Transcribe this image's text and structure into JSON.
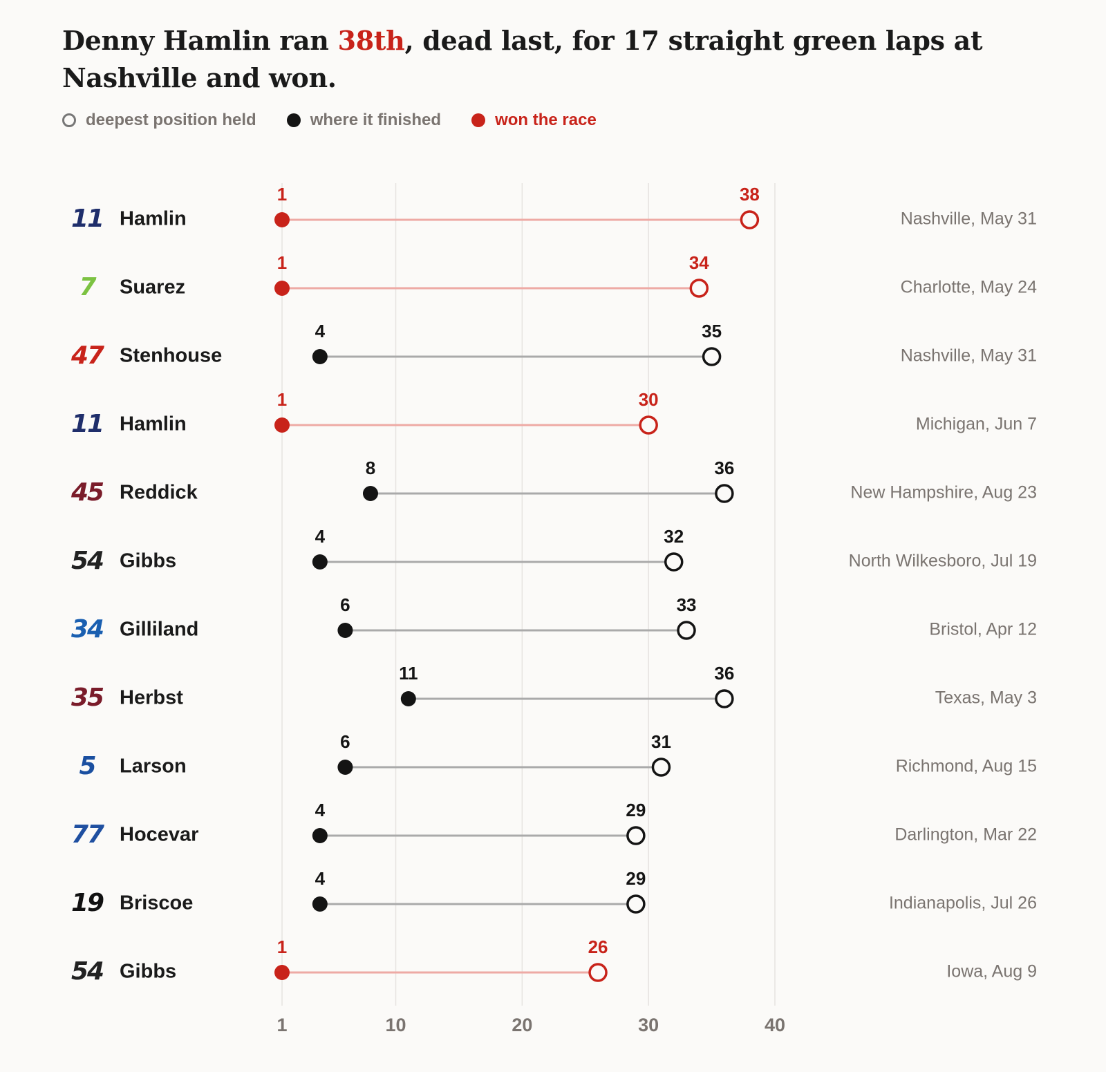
{
  "title": {
    "before": "Denny Hamlin ran ",
    "highlight": "38th",
    "after": ", dead last, for 17 straight green laps at Nashville and won."
  },
  "legend": {
    "open_label": "deepest position held",
    "finish_label": "where it finished",
    "won_label": "won the race"
  },
  "colors": {
    "won": "#c8231a",
    "won_line": "#eeaaa5",
    "finish": "#141414",
    "line": "#aaaaaa",
    "grid": "#e6e3e0",
    "muted": "#7a7470",
    "text": "#1a1a1a"
  },
  "chart_data": {
    "type": "dumbbell",
    "x_ticks": [
      1,
      10,
      20,
      30,
      40
    ],
    "xlim": [
      1,
      40
    ],
    "rows": [
      {
        "car": "11",
        "car_color": "#1f2e6b",
        "driver": "Hamlin",
        "finish": 1,
        "deepest": 38,
        "won": true,
        "race": "Nashville, May 31"
      },
      {
        "car": "7",
        "car_color": "#7cc242",
        "driver": "Suarez",
        "finish": 1,
        "deepest": 34,
        "won": true,
        "race": "Charlotte, May 24"
      },
      {
        "car": "47",
        "car_color": "#c8231a",
        "driver": "Stenhouse",
        "finish": 4,
        "deepest": 35,
        "won": false,
        "race": "Nashville, May 31"
      },
      {
        "car": "11",
        "car_color": "#1f2e6b",
        "driver": "Hamlin",
        "finish": 1,
        "deepest": 30,
        "won": true,
        "race": "Michigan, Jun 7"
      },
      {
        "car": "45",
        "car_color": "#7a1c2a",
        "driver": "Reddick",
        "finish": 8,
        "deepest": 36,
        "won": false,
        "race": "New Hampshire, Aug 23"
      },
      {
        "car": "54",
        "car_color": "#222222",
        "driver": "Gibbs",
        "finish": 4,
        "deepest": 32,
        "won": false,
        "race": "North Wilkesboro, Jul 19"
      },
      {
        "car": "34",
        "car_color": "#1a5fb0",
        "driver": "Gilliland",
        "finish": 6,
        "deepest": 33,
        "won": false,
        "race": "Bristol, Apr 12"
      },
      {
        "car": "35",
        "car_color": "#7a1c2a",
        "driver": "Herbst",
        "finish": 11,
        "deepest": 36,
        "won": false,
        "race": "Texas, May 3"
      },
      {
        "car": "5",
        "car_color": "#1a4fa0",
        "driver": "Larson",
        "finish": 6,
        "deepest": 31,
        "won": false,
        "race": "Richmond, Aug 15"
      },
      {
        "car": "77",
        "car_color": "#1f4fa0",
        "driver": "Hocevar",
        "finish": 4,
        "deepest": 29,
        "won": false,
        "race": "Darlington, Mar 22"
      },
      {
        "car": "19",
        "car_color": "#111111",
        "driver": "Briscoe",
        "finish": 4,
        "deepest": 29,
        "won": false,
        "race": "Indianapolis, Jul 26"
      },
      {
        "car": "54",
        "car_color": "#222222",
        "driver": "Gibbs",
        "finish": 1,
        "deepest": 26,
        "won": true,
        "race": "Iowa, Aug 9"
      }
    ]
  }
}
